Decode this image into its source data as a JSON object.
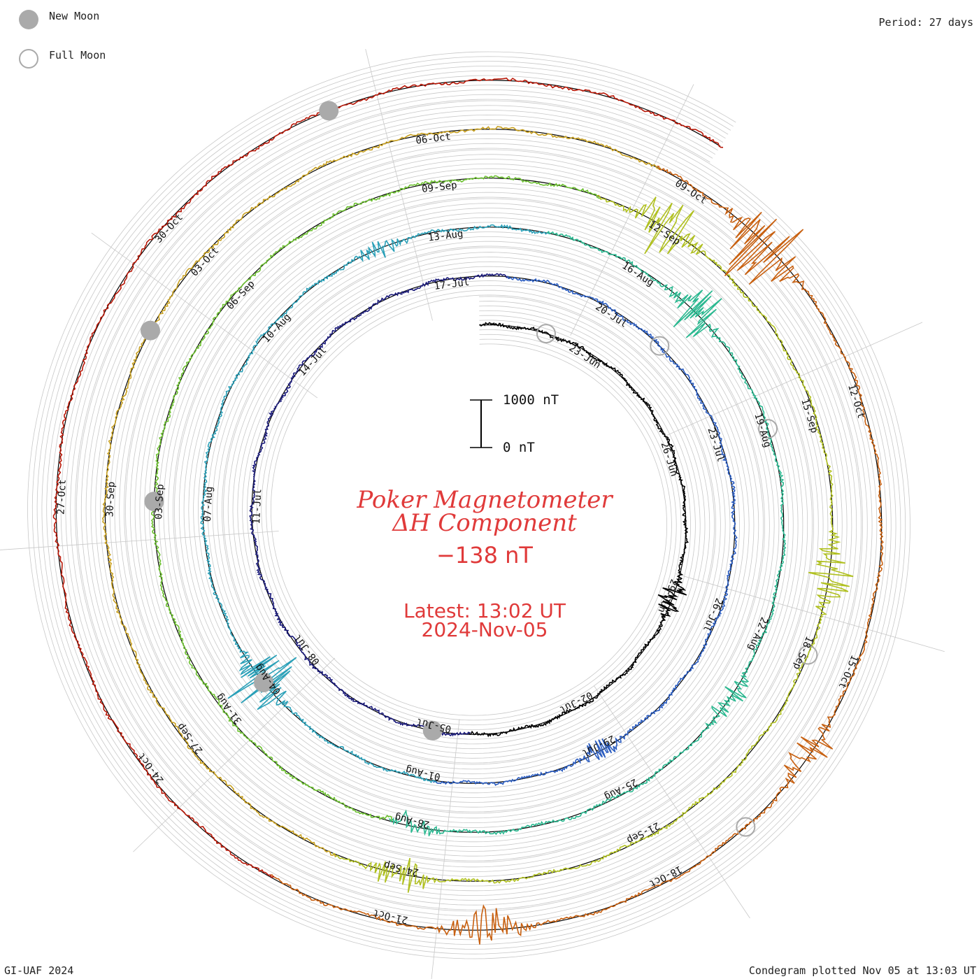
{
  "legend": {
    "new_moon_label": "New Moon",
    "full_moon_label": "Full Moon",
    "new_moon_color": "#aaaaaa",
    "full_moon_color": "#aaaaaa"
  },
  "header": {
    "period": "Period: 27 days"
  },
  "center": {
    "title_line1": "Poker Magnetometer",
    "title_line2": "ΔH Component",
    "current_value": "−138 nT",
    "latest_time": "Latest: 13:02 UT",
    "latest_date": "2024-Nov-05",
    "scale_top": "1000 nT",
    "scale_bottom": "0 nT",
    "title_color": "#e03a3a"
  },
  "footer": {
    "credit": "GI-UAF 2024",
    "plotted": "Condegram plotted Nov 05 at 13:03 UT"
  },
  "chart_data": {
    "type": "line",
    "style": "condegram spiral",
    "period_days": 27,
    "grid": true,
    "scale_nT": [
      0,
      1000
    ],
    "start": "2024-06-21",
    "end": "2024-11-05",
    "date_labels": [
      "23-Jun",
      "26-Jun",
      "29-Jun",
      "02-Jul",
      "05-Jul",
      "08-Jul",
      "11-Jul",
      "14-Jul",
      "17-Jul",
      "20-Jul",
      "23-Jul",
      "26-Jul",
      "29-Jul",
      "01-Aug",
      "04-Aug",
      "07-Aug",
      "10-Aug",
      "13-Aug",
      "16-Aug",
      "19-Aug",
      "22-Aug",
      "25-Aug",
      "28-Aug",
      "31-Aug",
      "03-Sep",
      "06-Sep",
      "09-Sep",
      "12-Sep",
      "15-Sep",
      "18-Sep",
      "21-Sep",
      "24-Sep",
      "27-Sep",
      "30-Sep",
      "03-Oct",
      "06-Oct",
      "09-Oct",
      "12-Oct",
      "15-Oct",
      "18-Oct",
      "21-Oct",
      "24-Oct",
      "27-Oct",
      "30-Oct"
    ],
    "date_label_angles_deg": [
      0,
      40,
      80,
      120,
      160,
      200,
      240,
      280,
      320,
      0,
      40,
      80,
      120,
      160,
      200,
      240,
      280,
      320,
      0,
      40,
      80,
      120,
      160,
      200,
      240,
      280,
      320,
      0,
      40,
      80,
      120,
      160,
      200,
      240,
      280,
      320,
      0,
      40,
      80,
      120,
      160,
      200,
      240,
      280
    ],
    "new_moons": [
      "2024-07-05",
      "2024-08-04",
      "2024-09-03",
      "2024-10-02",
      "2024-11-01"
    ],
    "full_moons": [
      "2024-06-22",
      "2024-07-21",
      "2024-08-19",
      "2024-09-18",
      "2024-10-17"
    ],
    "disturbances": [
      {
        "date": "2024-06-29",
        "peak_nT": 250
      },
      {
        "date": "2024-07-29",
        "peak_nT": 200
      },
      {
        "date": "2024-08-04",
        "peak_nT": 650
      },
      {
        "date": "2024-08-12",
        "peak_nT": 150
      },
      {
        "date": "2024-08-17",
        "peak_nT": 500
      },
      {
        "date": "2024-08-23",
        "peak_nT": 220
      },
      {
        "date": "2024-08-28",
        "peak_nT": 200
      },
      {
        "date": "2024-09-12",
        "peak_nT": 700
      },
      {
        "date": "2024-09-17",
        "peak_nT": 450
      },
      {
        "date": "2024-09-24",
        "peak_nT": 300
      },
      {
        "date": "2024-10-10",
        "peak_nT": 900
      },
      {
        "date": "2024-10-16",
        "peak_nT": 350
      },
      {
        "date": "2024-10-20",
        "peak_nT": 400
      }
    ],
    "colors": [
      "#000000",
      "#1a1a7a",
      "#2a5cc0",
      "#2aa0b8",
      "#2ab890",
      "#6cc030",
      "#b0c020",
      "#c8a020",
      "#c86010",
      "#b81808"
    ]
  }
}
